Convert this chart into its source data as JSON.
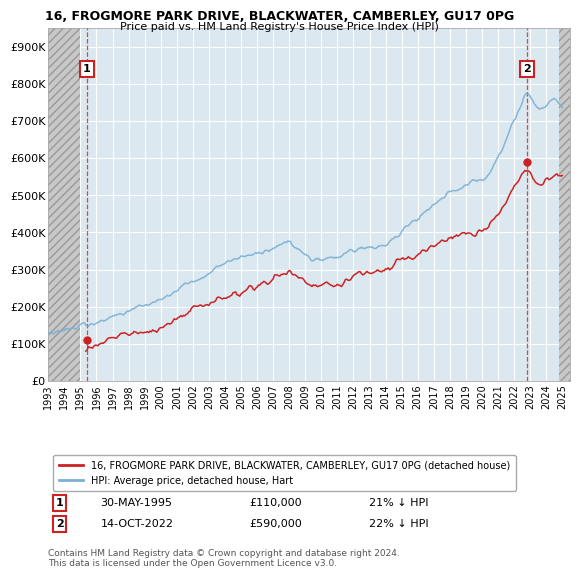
{
  "title1": "16, FROGMORE PARK DRIVE, BLACKWATER, CAMBERLEY, GU17 0PG",
  "title2": "Price paid vs. HM Land Registry's House Price Index (HPI)",
  "ylabel_ticks": [
    "£0",
    "£100K",
    "£200K",
    "£300K",
    "£400K",
    "£500K",
    "£600K",
    "£700K",
    "£800K",
    "£900K"
  ],
  "ytick_values": [
    0,
    100000,
    200000,
    300000,
    400000,
    500000,
    600000,
    700000,
    800000,
    900000
  ],
  "ylim": [
    0,
    950000
  ],
  "xlim_start": 1993.0,
  "xlim_end": 2025.5,
  "x_ticks": [
    1993,
    1994,
    1995,
    1996,
    1997,
    1998,
    1999,
    2000,
    2001,
    2002,
    2003,
    2004,
    2005,
    2006,
    2007,
    2008,
    2009,
    2010,
    2011,
    2012,
    2013,
    2014,
    2015,
    2016,
    2017,
    2018,
    2019,
    2020,
    2021,
    2022,
    2023,
    2024,
    2025
  ],
  "hpi_color": "#7ab0d4",
  "price_color": "#cc2222",
  "point1_x": 1995.41,
  "point1_y": 110000,
  "point2_x": 2022.79,
  "point2_y": 590000,
  "ann1_y": 840000,
  "ann2_y": 840000,
  "hatch_left_end": 1995.0,
  "hatch_right_start": 2024.8,
  "legend_label1": "16, FROGMORE PARK DRIVE, BLACKWATER, CAMBERLEY, GU17 0PG (detached house)",
  "legend_label2": "HPI: Average price, detached house, Hart",
  "note1_date": "30-MAY-1995",
  "note1_price": "£110,000",
  "note1_hpi": "21% ↓ HPI",
  "note2_date": "14-OCT-2022",
  "note2_price": "£590,000",
  "note2_hpi": "22% ↓ HPI",
  "footer": "Contains HM Land Registry data © Crown copyright and database right 2024.\nThis data is licensed under the Open Government Licence v3.0.",
  "bg_color": "#dce8f0",
  "hatch_color": "#c8c8c8",
  "grid_color": "white"
}
